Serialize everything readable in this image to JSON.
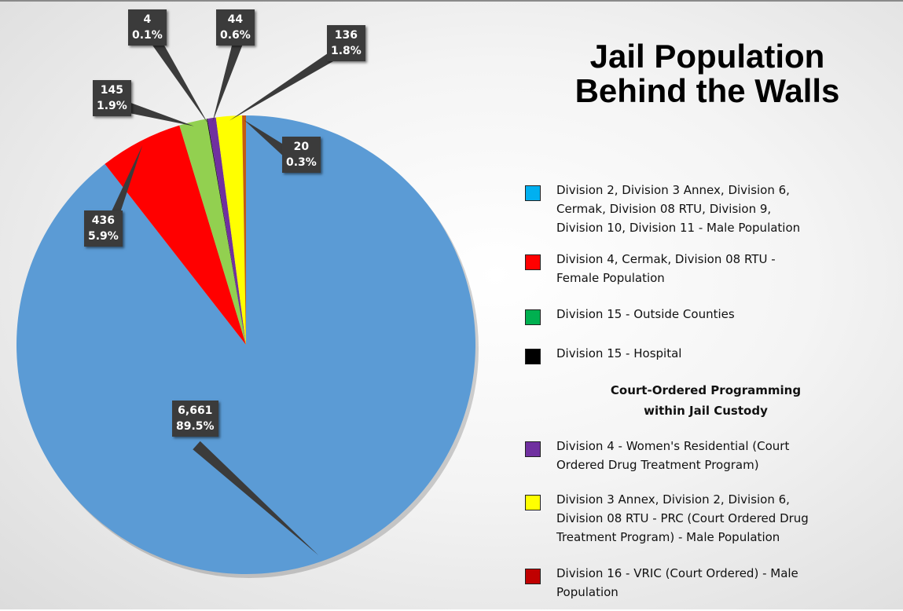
{
  "title": {
    "line1": "Jail Population",
    "line2": "Behind the Walls"
  },
  "chart_data": {
    "type": "pie",
    "title": "Jail Population Behind the Walls",
    "legend_position": "right",
    "slices": [
      {
        "key": "male",
        "value": 6661,
        "value_label": "6,661",
        "percent_label": "89.5%",
        "color": "#5b9bd5"
      },
      {
        "key": "female",
        "value": 436,
        "value_label": "436",
        "percent_label": "5.9%",
        "color": "#ff0000"
      },
      {
        "key": "outside",
        "value": 145,
        "value_label": "145",
        "percent_label": "1.9%",
        "color": "#92d050"
      },
      {
        "key": "hospital",
        "value": 4,
        "value_label": "4",
        "percent_label": "0.1%",
        "color": "#111111"
      },
      {
        "key": "womens",
        "value": 44,
        "value_label": "44",
        "percent_label": "0.6%",
        "color": "#7030a0"
      },
      {
        "key": "prc",
        "value": 136,
        "value_label": "136",
        "percent_label": "1.8%",
        "color": "#ffff00"
      },
      {
        "key": "vric",
        "value": 20,
        "value_label": "20",
        "percent_label": "0.3%",
        "color": "#c55a11"
      }
    ]
  },
  "legend": {
    "heading_line1": "Court-Ordered Programming",
    "heading_line2": "within Jail Custody",
    "items": [
      {
        "color": "#00b0f0",
        "lines": [
          "Division 2, Division 3 Annex, Division 6,",
          "Cermak, Division 08 RTU, Division 9,",
          "Division 10, Division 11 - Male Population"
        ]
      },
      {
        "color": "#ff0000",
        "lines": [
          "Division 4, Cermak, Division 08 RTU -",
          "Female Population"
        ]
      },
      {
        "color": "#00b050",
        "lines": [
          "Division 15 -  Outside Counties"
        ]
      },
      {
        "color": "#000000",
        "lines": [
          "Division 15 - Hospital"
        ]
      },
      {
        "color": "#7030a0",
        "lines": [
          "Division 4 - Women's Residential (Court",
          "Ordered Drug Treatment Program)"
        ]
      },
      {
        "color": "#ffff00",
        "lines": [
          "Division 3 Annex, Division 2, Division 6,",
          "Division 08 RTU - PRC (Court Ordered Drug",
          "Treatment Program) - Male Population"
        ]
      },
      {
        "color": "#c00000",
        "lines": [
          "Division 16 - VRIC (Court Ordered) - Male",
          "Population"
        ]
      }
    ]
  }
}
